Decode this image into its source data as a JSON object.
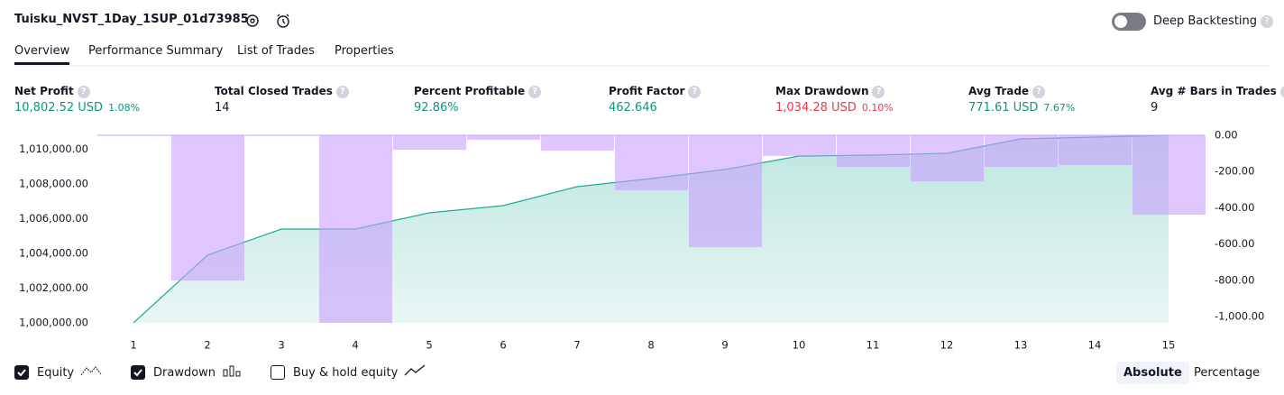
{
  "header": {
    "title": "Tuisku_NVST_1Day_1SUP_01d73985",
    "toggle_label": "Deep Backtesting",
    "toggle_on": false
  },
  "tabs": {
    "items": [
      "Overview",
      "Performance Summary",
      "List of Trades",
      "Properties"
    ],
    "active": 0
  },
  "metrics": [
    {
      "label": "Net Profit",
      "value": "10,802.52 USD",
      "percent": "1.08%",
      "tone": "positive"
    },
    {
      "label": "Total Closed Trades",
      "value": "14",
      "tone": "neutral"
    },
    {
      "label": "Percent Profitable",
      "value": "92.86%",
      "tone": "positive"
    },
    {
      "label": "Profit Factor",
      "value": "462.646",
      "tone": "positive"
    },
    {
      "label": "Max Drawdown",
      "value": "1,034.28 USD",
      "percent": "0.10%",
      "tone": "negative"
    },
    {
      "label": "Avg Trade",
      "value": "771.61 USD",
      "percent": "7.67%",
      "tone": "positive"
    },
    {
      "label": "Avg # Bars in Trades",
      "value": "9",
      "tone": "neutral"
    }
  ],
  "chart_data": {
    "type": "equity-drawdown",
    "categories": [
      "1",
      "2",
      "3",
      "4",
      "5",
      "6",
      "7",
      "8",
      "9",
      "10",
      "11",
      "12",
      "13",
      "14",
      "15"
    ],
    "series": [
      {
        "type": "area",
        "color": "#22ab94",
        "values": [
          1000000,
          1003895,
          1005401,
          1005401,
          1006336,
          1006752,
          1007842,
          1008309,
          1008829,
          1009608,
          1009660,
          1009764,
          1010595,
          1010699,
          1010802.52
        ]
      },
      {
        "type": "bar",
        "axis": "y2",
        "color": "#c9a0ff",
        "values": [
          0,
          -801,
          0,
          -1034.28,
          -80,
          -25,
          -85,
          -303,
          -617,
          -114,
          -174,
          -254,
          -174,
          -164,
          -438
        ]
      }
    ],
    "ylim": [
      1000000,
      1010802.52
    ],
    "yticks": [
      {
        "value": 1000000,
        "label": "1,000,000.00"
      },
      {
        "value": 1002000,
        "label": "1,002,000.00"
      },
      {
        "value": 1004000,
        "label": "1,004,000.00"
      },
      {
        "value": 1006000,
        "label": "1,006,000.00"
      },
      {
        "value": 1008000,
        "label": "1,008,000.00"
      },
      {
        "value": 1010000,
        "label": "1,010,000.00"
      }
    ],
    "y2lim": [
      -1034.28,
      0
    ],
    "y2ticks": [
      {
        "value": 0,
        "label": "0.00"
      },
      {
        "value": -200,
        "label": "-200.00"
      },
      {
        "value": -400,
        "label": "-400.00"
      },
      {
        "value": -600,
        "label": "-600.00"
      },
      {
        "value": -800,
        "label": "-800.00"
      },
      {
        "value": -1000,
        "label": "-1,000.00"
      }
    ],
    "legend": [
      {
        "label": "Equity",
        "checked": true
      },
      {
        "label": "Drawdown",
        "checked": true
      },
      {
        "label": "Buy & hold equity",
        "checked": false
      }
    ]
  },
  "view_buttons": {
    "items": [
      "Absolute",
      "Percentage"
    ],
    "active": 0
  }
}
